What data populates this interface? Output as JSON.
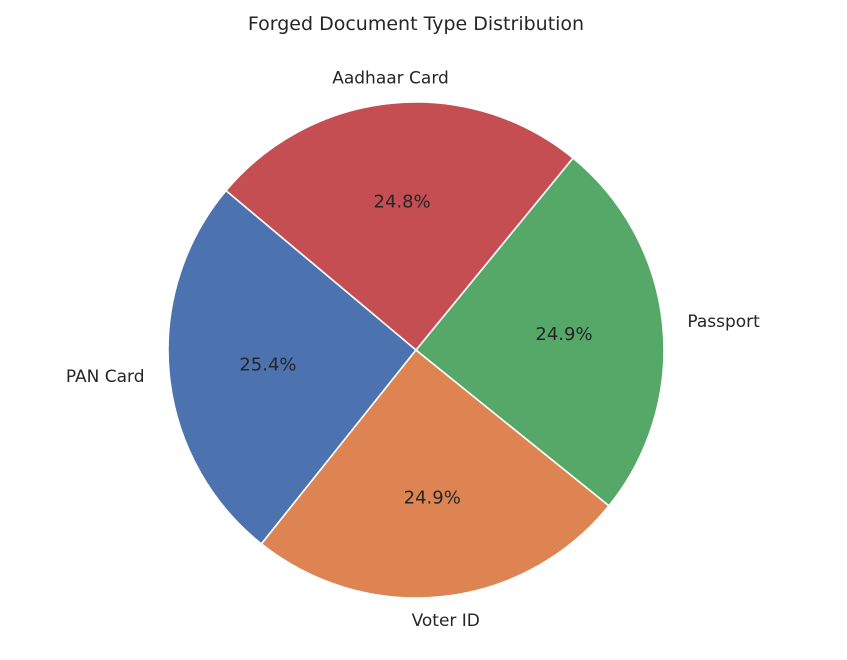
{
  "chart_data": {
    "type": "pie",
    "title": "Forged Document Type Distribution",
    "start_angle_deg": 140,
    "direction": "counterclockwise",
    "slices": [
      {
        "label": "PAN Card",
        "value": 25.4,
        "pct_label": "25.4%",
        "color": "#4c72b0"
      },
      {
        "label": "Voter ID",
        "value": 24.9,
        "pct_label": "24.9%",
        "color": "#dd8452"
      },
      {
        "label": "Passport",
        "value": 24.9,
        "pct_label": "24.9%",
        "color": "#55a868"
      },
      {
        "label": "Aadhaar Card",
        "value": 24.8,
        "pct_label": "24.8%",
        "color": "#c44e52"
      }
    ]
  }
}
